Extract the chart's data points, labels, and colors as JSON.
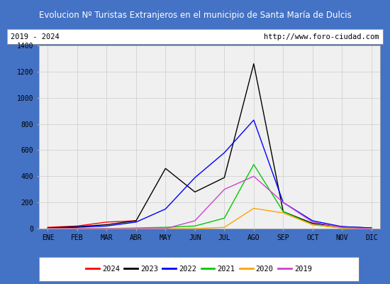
{
  "title": "Evolucion Nº Turistas Extranjeros en el municipio de Santa María de Dulcis",
  "title_color": "#ffffff",
  "title_bg_color": "#4472c4",
  "subtitle_left": "2019 - 2024",
  "subtitle_right": "http://www.foro-ciudad.com",
  "months": [
    "ENE",
    "FEB",
    "MAR",
    "ABR",
    "MAY",
    "JUN",
    "JUL",
    "AGO",
    "SEP",
    "OCT",
    "NOV",
    "DIC"
  ],
  "ylim": [
    0,
    1400
  ],
  "yticks": [
    0,
    200,
    400,
    600,
    800,
    1000,
    1200,
    1400
  ],
  "series": {
    "2024": {
      "color": "#ff0000",
      "data": [
        10,
        20,
        50,
        60,
        null,
        null,
        null,
        null,
        null,
        null,
        null,
        null
      ]
    },
    "2023": {
      "color": "#000000",
      "data": [
        5,
        15,
        30,
        60,
        460,
        280,
        390,
        1260,
        130,
        40,
        15,
        5
      ]
    },
    "2022": {
      "color": "#0000ff",
      "data": [
        5,
        10,
        20,
        50,
        150,
        390,
        580,
        830,
        200,
        60,
        15,
        5
      ]
    },
    "2021": {
      "color": "#00cc00",
      "data": [
        0,
        0,
        0,
        5,
        10,
        20,
        80,
        490,
        130,
        30,
        5,
        0
      ]
    },
    "2020": {
      "color": "#ffa500",
      "data": [
        0,
        0,
        0,
        0,
        0,
        0,
        10,
        155,
        120,
        30,
        5,
        0
      ]
    },
    "2019": {
      "color": "#cc44cc",
      "data": [
        0,
        0,
        0,
        0,
        0,
        60,
        300,
        400,
        200,
        50,
        10,
        0
      ]
    }
  },
  "plot_bg_color": "#f0f0f0",
  "grid_color": "#cccccc",
  "outer_bg_color": "#4472c4",
  "legend_order": [
    "2024",
    "2023",
    "2022",
    "2021",
    "2020",
    "2019"
  ]
}
